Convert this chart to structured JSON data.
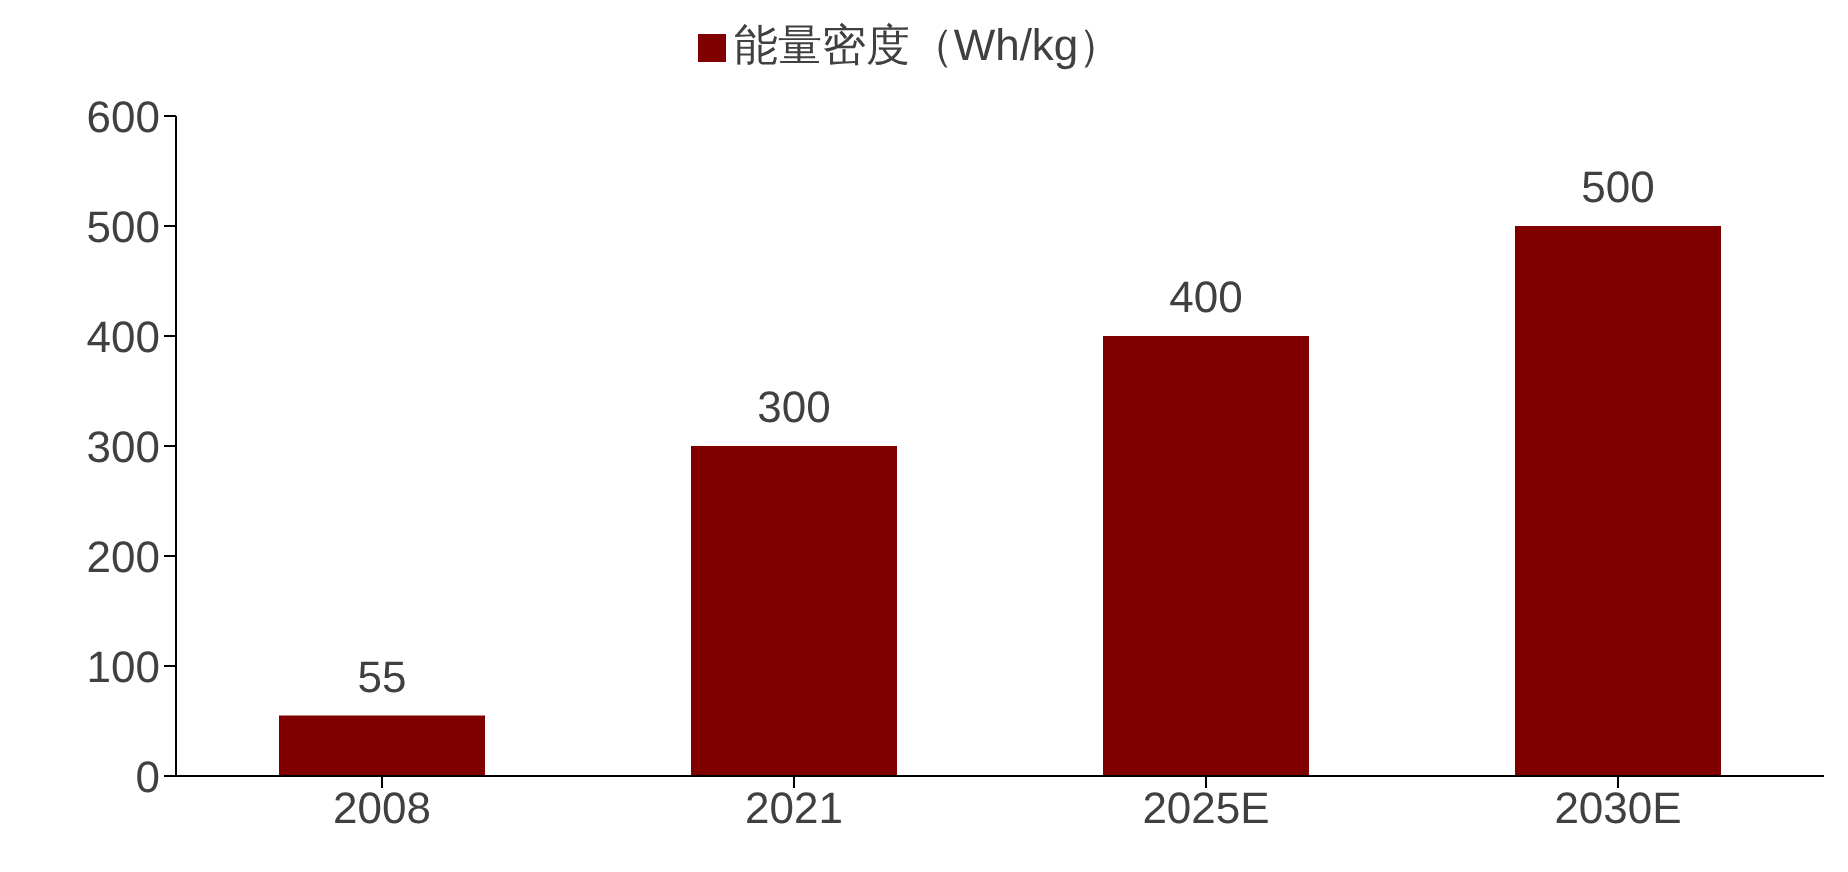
{
  "chart_data": {
    "type": "bar",
    "categories": [
      "2008",
      "2021",
      "2025E",
      "2030E"
    ],
    "series": [
      {
        "name": "能量密度（Wh/kg）",
        "color": "#800000",
        "values": [
          55,
          300,
          400,
          500
        ]
      }
    ],
    "ylim": [
      0,
      600
    ],
    "yticks": [
      0,
      100,
      200,
      300,
      400,
      500,
      600
    ],
    "grid": false,
    "legend": "top",
    "data_labels": true
  }
}
